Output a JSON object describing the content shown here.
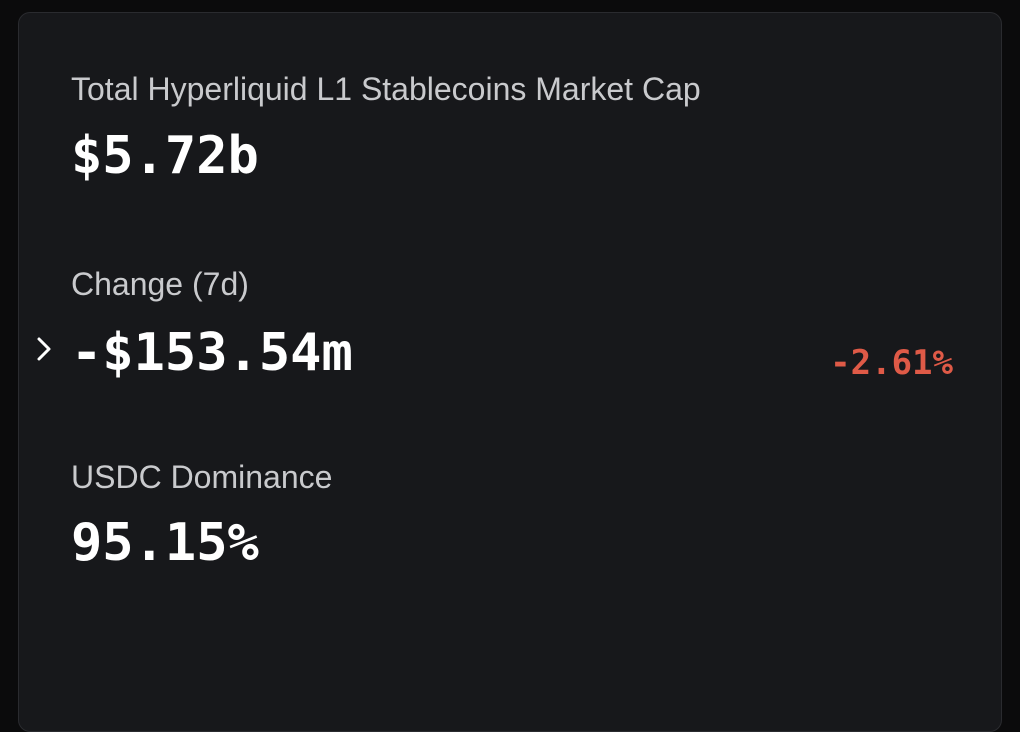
{
  "stats": [
    {
      "label": "Total Hyperliquid L1 Stablecoins Market Cap",
      "value": "$5.72b"
    },
    {
      "label": "Change (7d)",
      "value": "-$153.54m",
      "change": "-2.61%"
    },
    {
      "label": "USDC Dominance",
      "value": "95.15%"
    }
  ]
}
